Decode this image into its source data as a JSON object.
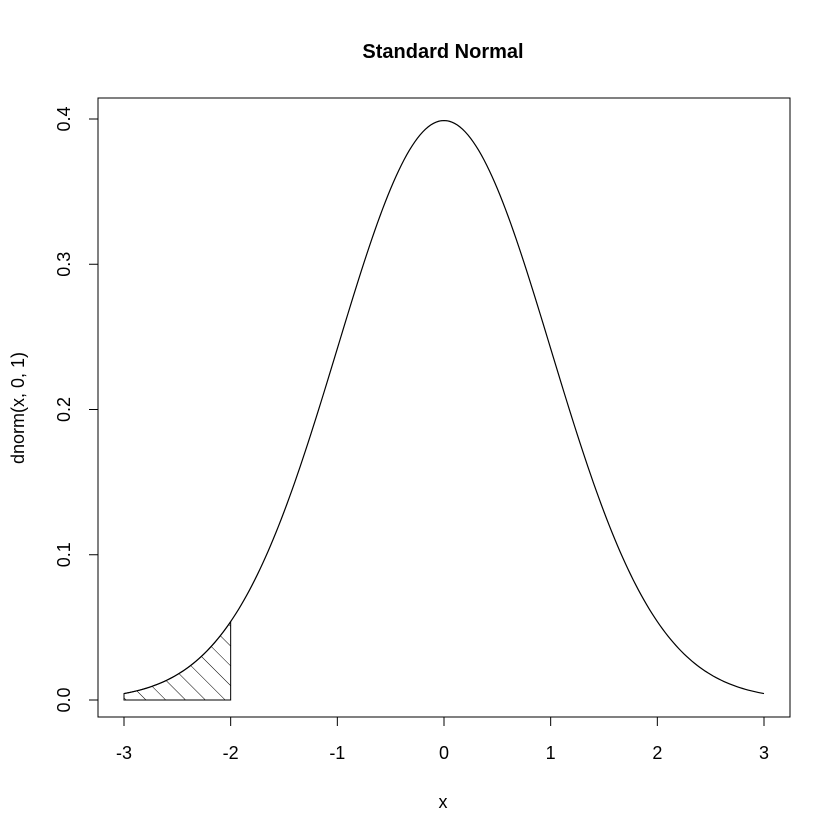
{
  "chart_data": {
    "type": "line",
    "title": "Standard Normal",
    "xlabel": "x",
    "ylabel": "dnorm(x, 0, 1)",
    "xlim": [
      -3,
      3
    ],
    "ylim": [
      0,
      0.4
    ],
    "x_ticks": [
      "-3",
      "-2",
      "-1",
      "0",
      "1",
      "2",
      "3"
    ],
    "y_ticks": [
      "0.0",
      "0.1",
      "0.2",
      "0.3",
      "0.4"
    ],
    "grid": false,
    "series": [
      {
        "curve": "normal density, mean 0, sd 1",
        "x": [
          -3.0,
          -2.5,
          -2.0,
          -1.5,
          -1.0,
          -0.5,
          0.0,
          0.5,
          1.0,
          1.5,
          2.0,
          2.5,
          3.0
        ],
        "y": [
          0.0044,
          0.0175,
          0.054,
          0.1295,
          0.242,
          0.3521,
          0.3989,
          0.3521,
          0.242,
          0.1295,
          0.054,
          0.0175,
          0.0044
        ]
      }
    ],
    "shaded_region": {
      "x_from": -3,
      "x_to": -2,
      "fill": "hatched"
    },
    "colors": {
      "line": "#000000",
      "background": "#ffffff"
    }
  }
}
